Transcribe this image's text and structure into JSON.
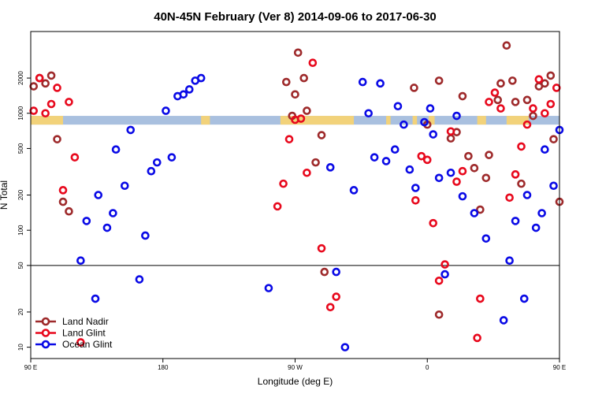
{
  "chart_data": {
    "type": "scatter",
    "title": "40N-45N February (Ver 8)   2014-09-06 to 2017-06-30",
    "xlabel": "Longitude (deg E)",
    "ylabel": "N Total",
    "x_scale": "linear",
    "y_scale": "log",
    "xlim": [
      90,
      450
    ],
    "ylim": [
      8,
      5000
    ],
    "x_ticks": [
      {
        "value": 90,
        "label": "90 E"
      },
      {
        "value": 180,
        "label": "180"
      },
      {
        "value": 270,
        "label": "90 W"
      },
      {
        "value": 360,
        "label": "0"
      },
      {
        "value": 450,
        "label": "90 E"
      },
      {
        "value": 540,
        "label": "180"
      }
    ],
    "y_ticks": [
      {
        "value": 10,
        "label": "10"
      },
      {
        "value": 20,
        "label": "20"
      },
      {
        "value": 50,
        "label": "50"
      },
      {
        "value": 100,
        "label": "100"
      },
      {
        "value": 200,
        "label": "200"
      },
      {
        "value": 500,
        "label": "500"
      },
      {
        "value": 1000,
        "label": "1000"
      },
      {
        "value": 2000,
        "label": "2000"
      }
    ],
    "reference_line": {
      "y": 50,
      "color": "#000000"
    },
    "legend_position": "bottom-left",
    "land_mask_band": {
      "y_range": [
        800,
        950
      ],
      "land_color": "#f2d27a",
      "ocean_color": "#a9c0df",
      "land_x_ranges": [
        [
          90,
          112
        ],
        [
          206,
          212
        ],
        [
          260,
          310
        ],
        [
          332,
          335
        ],
        [
          350,
          353
        ],
        [
          361,
          365
        ],
        [
          394,
          400
        ],
        [
          414,
          429
        ],
        [
          450,
          472
        ],
        [
          496,
          502
        ]
      ]
    },
    "series": [
      {
        "name": "Land Nadir",
        "color": "#9e2a2b",
        "points": [
          [
            92,
            1700
          ],
          [
            96,
            2000
          ],
          [
            100,
            1800
          ],
          [
            104,
            2100
          ],
          [
            108,
            600
          ],
          [
            112,
            175
          ],
          [
            116,
            145
          ],
          [
            272,
            3300
          ],
          [
            276,
            2000
          ],
          [
            270,
            1450
          ],
          [
            264,
            1850
          ],
          [
            268,
            950
          ],
          [
            284,
            380
          ],
          [
            278,
            1050
          ],
          [
            288,
            650
          ],
          [
            290,
            44
          ],
          [
            351,
            1650
          ],
          [
            360,
            800
          ],
          [
            368,
            1900
          ],
          [
            376,
            610
          ],
          [
            380,
            690
          ],
          [
            384,
            1400
          ],
          [
            388,
            430
          ],
          [
            392,
            340
          ],
          [
            396,
            150
          ],
          [
            400,
            280
          ],
          [
            402,
            440
          ],
          [
            408,
            1300
          ],
          [
            410,
            1800
          ],
          [
            414,
            3800
          ],
          [
            418,
            1900
          ],
          [
            420,
            1250
          ],
          [
            424,
            250
          ],
          [
            428,
            1300
          ],
          [
            432,
            950
          ],
          [
            436,
            1700
          ],
          [
            440,
            1800
          ],
          [
            444,
            2100
          ],
          [
            446,
            600
          ],
          [
            450,
            175
          ],
          [
            454,
            145
          ],
          [
            368,
            19
          ]
        ]
      },
      {
        "name": "Land Glint",
        "color": "#e8091d",
        "points": [
          [
            92,
            1050
          ],
          [
            96,
            2000
          ],
          [
            100,
            1000
          ],
          [
            104,
            1200
          ],
          [
            108,
            1650
          ],
          [
            112,
            220
          ],
          [
            116,
            1250
          ],
          [
            120,
            420
          ],
          [
            124,
            11
          ],
          [
            258,
            160
          ],
          [
            262,
            250
          ],
          [
            266,
            600
          ],
          [
            270,
            880
          ],
          [
            274,
            900
          ],
          [
            278,
            310
          ],
          [
            282,
            2700
          ],
          [
            288,
            70
          ],
          [
            294,
            22
          ],
          [
            298,
            27
          ],
          [
            352,
            180
          ],
          [
            356,
            430
          ],
          [
            360,
            400
          ],
          [
            364,
            115
          ],
          [
            368,
            37
          ],
          [
            372,
            51
          ],
          [
            376,
            700
          ],
          [
            380,
            260
          ],
          [
            384,
            320
          ],
          [
            394,
            12
          ],
          [
            396,
            26
          ],
          [
            402,
            1250
          ],
          [
            406,
            1500
          ],
          [
            410,
            1100
          ],
          [
            416,
            190
          ],
          [
            420,
            300
          ],
          [
            424,
            520
          ],
          [
            428,
            800
          ],
          [
            432,
            1100
          ],
          [
            436,
            1950
          ],
          [
            440,
            1000
          ],
          [
            444,
            1200
          ],
          [
            448,
            1650
          ],
          [
            452,
            220
          ],
          [
            456,
            1250
          ],
          [
            460,
            420
          ],
          [
            464,
            11
          ]
        ]
      },
      {
        "name": "Ocean Glint",
        "color": "#0a0ae6",
        "points": [
          [
            124,
            55
          ],
          [
            128,
            120
          ],
          [
            134,
            26
          ],
          [
            136,
            200
          ],
          [
            142,
            105
          ],
          [
            146,
            140
          ],
          [
            148,
            490
          ],
          [
            154,
            240
          ],
          [
            158,
            720
          ],
          [
            164,
            38
          ],
          [
            168,
            90
          ],
          [
            172,
            320
          ],
          [
            176,
            380
          ],
          [
            182,
            1050
          ],
          [
            186,
            420
          ],
          [
            190,
            1400
          ],
          [
            194,
            1450
          ],
          [
            198,
            1600
          ],
          [
            202,
            1900
          ],
          [
            206,
            2000
          ],
          [
            252,
            32
          ],
          [
            294,
            345
          ],
          [
            304,
            10
          ],
          [
            298,
            44
          ],
          [
            310,
            220
          ],
          [
            316,
            1850
          ],
          [
            320,
            1000
          ],
          [
            324,
            420
          ],
          [
            328,
            1800
          ],
          [
            332,
            390
          ],
          [
            338,
            490
          ],
          [
            340,
            1150
          ],
          [
            344,
            800
          ],
          [
            348,
            330
          ],
          [
            352,
            230
          ],
          [
            358,
            840
          ],
          [
            362,
            1100
          ],
          [
            364,
            660
          ],
          [
            368,
            280
          ],
          [
            372,
            42
          ],
          [
            376,
            310
          ],
          [
            380,
            950
          ],
          [
            384,
            195
          ],
          [
            392,
            140
          ],
          [
            400,
            85
          ],
          [
            412,
            17
          ],
          [
            416,
            55
          ],
          [
            420,
            120
          ],
          [
            426,
            26
          ],
          [
            428,
            200
          ],
          [
            434,
            105
          ],
          [
            438,
            140
          ],
          [
            440,
            490
          ],
          [
            446,
            240
          ],
          [
            450,
            720
          ],
          [
            454,
            38
          ]
        ]
      }
    ]
  }
}
